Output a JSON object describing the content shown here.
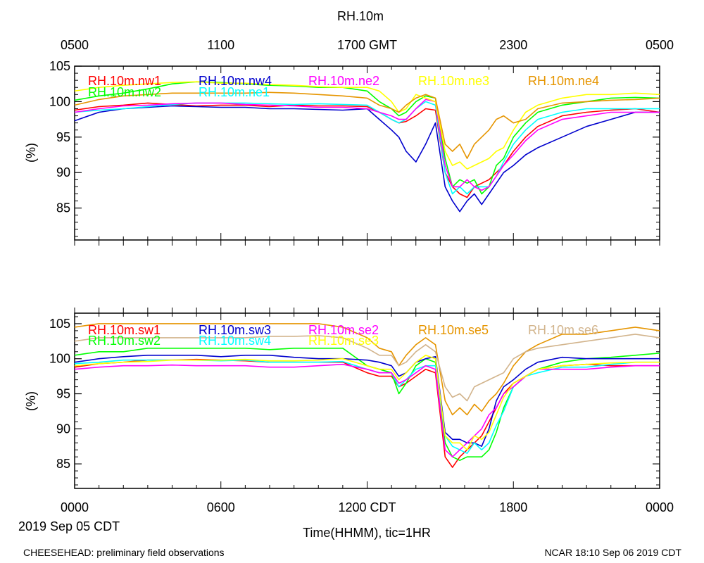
{
  "title": "RH.10m",
  "footer_left": "CHEESEHEAD: preliminary field observations",
  "footer_right": "NCAR 18:10 Sep 06 2019 CDT",
  "date_label": "2019 Sep 05 CDT",
  "xlabel": "Time(HHMM), tic=1HR",
  "top_axis_ticks": [
    "0500",
    "1100",
    "1700 GMT",
    "2300",
    "0500"
  ],
  "bottom_axis_ticks": [
    "0000",
    "0600",
    "1200 CDT",
    "1800",
    "0000"
  ],
  "chart_data": [
    {
      "type": "line",
      "name": "top-panel",
      "title": "RH.10m",
      "ylabel": "(%)",
      "ylim": [
        80.5,
        105
      ],
      "yticks": [
        85,
        90,
        95,
        100,
        105
      ],
      "xlim": [
        0,
        24
      ],
      "x_unit": "hours CDT",
      "x": [
        0,
        1,
        2,
        3,
        4,
        5,
        6,
        7,
        8,
        9,
        10,
        11,
        12,
        12.5,
        13,
        13.3,
        13.6,
        14,
        14.4,
        14.8,
        15.2,
        15.5,
        15.8,
        16.1,
        16.4,
        16.7,
        17,
        17.3,
        17.6,
        18,
        18.5,
        19,
        20,
        21,
        22,
        23,
        24
      ],
      "series": [
        {
          "name": "RH.10m.nw1",
          "color": "#ff0000",
          "values": [
            98.8,
            99.3,
            99.5,
            99.8,
            99.6,
            99.4,
            99.5,
            99.5,
            99.3,
            99.5,
            99.4,
            99.4,
            99.3,
            98.5,
            97.5,
            97,
            97.2,
            98,
            99,
            98.8,
            90,
            88,
            87,
            86.5,
            88,
            88.5,
            89,
            90,
            91,
            93,
            95,
            96.5,
            98,
            98.5,
            98.8,
            99,
            98.5
          ]
        },
        {
          "name": "RH.10m.nw2",
          "color": "#00ff00",
          "values": [
            100.2,
            100.8,
            101.2,
            101.8,
            102.5,
            102.8,
            102.7,
            102.5,
            102.3,
            102.2,
            102,
            102,
            101.5,
            100,
            99,
            98,
            98.5,
            100,
            100.8,
            100.5,
            92,
            88,
            89,
            88.5,
            89,
            87,
            88,
            91,
            92,
            95,
            97,
            98.5,
            99.5,
            100,
            100.5,
            100.6,
            100.5
          ]
        },
        {
          "name": "RH.10m.nw4",
          "color": "#0000cd",
          "values": [
            97.3,
            98.5,
            99,
            99.2,
            99.4,
            99.3,
            99.2,
            99.2,
            99,
            99,
            98.9,
            98.8,
            99,
            97.5,
            96,
            95,
            93,
            91.5,
            94,
            97,
            88,
            86,
            84.5,
            86,
            87,
            85.5,
            87,
            88.5,
            90,
            91,
            92.5,
            93.5,
            95,
            96.5,
            97.5,
            98.5,
            98.5
          ]
        },
        {
          "name": "RH.10m.ne1",
          "color": "#00ffff",
          "values": [
            98.5,
            98.8,
            99,
            99.3,
            99.6,
            99.8,
            99.8,
            99.8,
            99.7,
            99.6,
            99.7,
            99.6,
            99.5,
            98.5,
            97.5,
            97,
            97.5,
            99,
            100,
            99.5,
            90,
            87,
            88,
            87,
            88,
            88,
            88,
            89.5,
            91.5,
            94,
            96,
            97.5,
            98.5,
            99,
            99,
            99,
            99
          ]
        },
        {
          "name": "RH.10m.ne2",
          "color": "#ff00ff",
          "values": [
            98.5,
            99,
            99.4,
            99.5,
            99.7,
            99.8,
            99.8,
            99.6,
            99.5,
            99.4,
            99.2,
            99.2,
            99,
            98.5,
            98,
            97.5,
            97.5,
            99,
            100.3,
            100,
            91,
            88,
            88,
            89,
            88,
            87.5,
            88,
            89.5,
            91,
            92.5,
            94.5,
            96,
            97.5,
            98,
            98.5,
            98.5,
            98.5
          ]
        },
        {
          "name": "RH.10m.ne3",
          "color": "#ffff00",
          "values": [
            101.5,
            102,
            102.3,
            102.5,
            102.7,
            102.8,
            102.6,
            102.6,
            102.4,
            102.3,
            102.1,
            102,
            102,
            101.5,
            100,
            98.5,
            99,
            101,
            100.5,
            100,
            93,
            91,
            91.5,
            90.5,
            91,
            91.5,
            92,
            93,
            93.5,
            96,
            98.5,
            99.5,
            100.5,
            101,
            101,
            101.2,
            101
          ]
        },
        {
          "name": "RH.10m.ne4",
          "color": "#e69500",
          "values": [
            99.5,
            100.3,
            100.8,
            101,
            101.2,
            101.2,
            101.2,
            101.2,
            101.3,
            101.2,
            101,
            100.8,
            100.5,
            99.5,
            99,
            98.5,
            99.5,
            100.5,
            101,
            100.5,
            94,
            93,
            94,
            92,
            94,
            95,
            96,
            97.5,
            98,
            97,
            97.5,
            99,
            99.8,
            100,
            100.2,
            100.3,
            100.5
          ]
        }
      ]
    },
    {
      "type": "line",
      "name": "bottom-panel",
      "title": "",
      "ylabel": "(%)",
      "ylim": [
        81.5,
        106.5
      ],
      "yticks": [
        85,
        90,
        95,
        100,
        105
      ],
      "xlim": [
        0,
        24
      ],
      "x_unit": "hours CDT",
      "x": [
        0,
        1,
        2,
        3,
        4,
        5,
        6,
        7,
        8,
        9,
        10,
        11,
        12,
        12.5,
        13,
        13.3,
        13.6,
        14,
        14.4,
        14.8,
        15.2,
        15.5,
        15.8,
        16.1,
        16.4,
        16.7,
        17,
        17.3,
        17.6,
        18,
        18.5,
        19,
        20,
        21,
        22,
        23,
        24
      ],
      "series": [
        {
          "name": "RH.10m.sw1",
          "color": "#ff0000",
          "values": [
            98.8,
            99.3,
            99.5,
            99.8,
            99.8,
            99.9,
            99.8,
            99.7,
            99.5,
            99.5,
            99.5,
            99.5,
            98,
            97.5,
            97.5,
            96,
            96.5,
            97.5,
            98.5,
            98,
            86,
            84.5,
            86,
            87,
            88,
            89,
            91,
            93,
            95,
            96.5,
            97.5,
            98.5,
            99,
            99.2,
            99,
            99,
            99
          ]
        },
        {
          "name": "RH.10m.sw2",
          "color": "#00ff00",
          "values": [
            100.5,
            101,
            101,
            101.5,
            101.5,
            101.5,
            101.5,
            101.5,
            101.3,
            101.5,
            101.5,
            101.5,
            99,
            98.5,
            98,
            95,
            96.5,
            99,
            100,
            99.5,
            88,
            86,
            85.5,
            86,
            86,
            86,
            87,
            89.5,
            93,
            96,
            97.5,
            98.5,
            99.5,
            100,
            100.2,
            100.5,
            100.8
          ]
        },
        {
          "name": "RH.10m.sw3",
          "color": "#0000cd",
          "values": [
            99.5,
            100,
            100.3,
            100.5,
            100.5,
            100.5,
            100.3,
            100.5,
            100.5,
            100.2,
            100,
            100,
            99.8,
            99.5,
            99,
            97.5,
            98,
            99.5,
            100,
            100.3,
            89.5,
            88.5,
            88.5,
            88,
            88,
            87.5,
            90,
            94,
            96,
            97,
            98.5,
            99.5,
            100.2,
            100,
            100,
            100,
            100
          ]
        },
        {
          "name": "RH.10m.sw4",
          "color": "#00ffff",
          "values": [
            99.3,
            99.5,
            99.8,
            99.8,
            99.8,
            99.8,
            99.7,
            99.8,
            99.5,
            99.5,
            99.5,
            99.6,
            98.5,
            98,
            98,
            96,
            97,
            98.5,
            99,
            99,
            89,
            87.5,
            87,
            86.5,
            88,
            87,
            88,
            90.5,
            92.5,
            96,
            97.5,
            98,
            98.8,
            98.8,
            99.2,
            99.5,
            99.5
          ]
        },
        {
          "name": "RH.10m.se2",
          "color": "#ff00ff",
          "values": [
            98.5,
            98.8,
            99,
            99,
            99.1,
            99,
            99,
            99,
            98.8,
            98.8,
            99,
            99.2,
            98.5,
            98,
            98,
            96.5,
            97,
            98,
            99,
            98.5,
            87,
            86,
            87,
            88,
            89,
            90,
            92,
            93,
            95,
            96,
            97.5,
            98.5,
            98.5,
            98.5,
            98.8,
            99,
            99
          ]
        },
        {
          "name": "RH.10m.se3",
          "color": "#ffff00",
          "values": [
            99,
            99.3,
            99.5,
            99.6,
            99.8,
            99.8,
            99.8,
            99.9,
            99.7,
            99.7,
            99.8,
            100,
            99,
            98.5,
            98.5,
            97,
            98,
            99.5,
            100.5,
            100,
            89,
            88,
            88,
            87,
            89,
            88.5,
            89.5,
            92,
            94.5,
            96.5,
            97.5,
            98.5,
            99,
            99.2,
            99.4,
            99.5,
            99.5
          ]
        },
        {
          "name": "RH.10m.se5",
          "color": "#e69500",
          "values": [
            104.5,
            105,
            105,
            105,
            105,
            105,
            105,
            105,
            105,
            105,
            105,
            104.5,
            103,
            101.5,
            101,
            99,
            100.5,
            102,
            103,
            102,
            94,
            92,
            93,
            92,
            93.5,
            92.5,
            94,
            95,
            96.5,
            99,
            101,
            102,
            103.5,
            103.5,
            104,
            104.5,
            104
          ]
        },
        {
          "name": "RH.10m.se6",
          "color": "#d2b48c",
          "values": [
            102.5,
            103,
            103,
            103,
            103,
            103,
            103,
            103,
            103.2,
            103.2,
            103.3,
            103,
            101.5,
            100.5,
            100.5,
            99,
            99.5,
            101,
            102,
            101,
            96,
            94.5,
            95,
            94,
            96,
            96.5,
            97,
            97.5,
            98,
            100,
            101,
            101.5,
            102,
            102.5,
            103,
            103.5,
            103
          ]
        }
      ]
    }
  ]
}
